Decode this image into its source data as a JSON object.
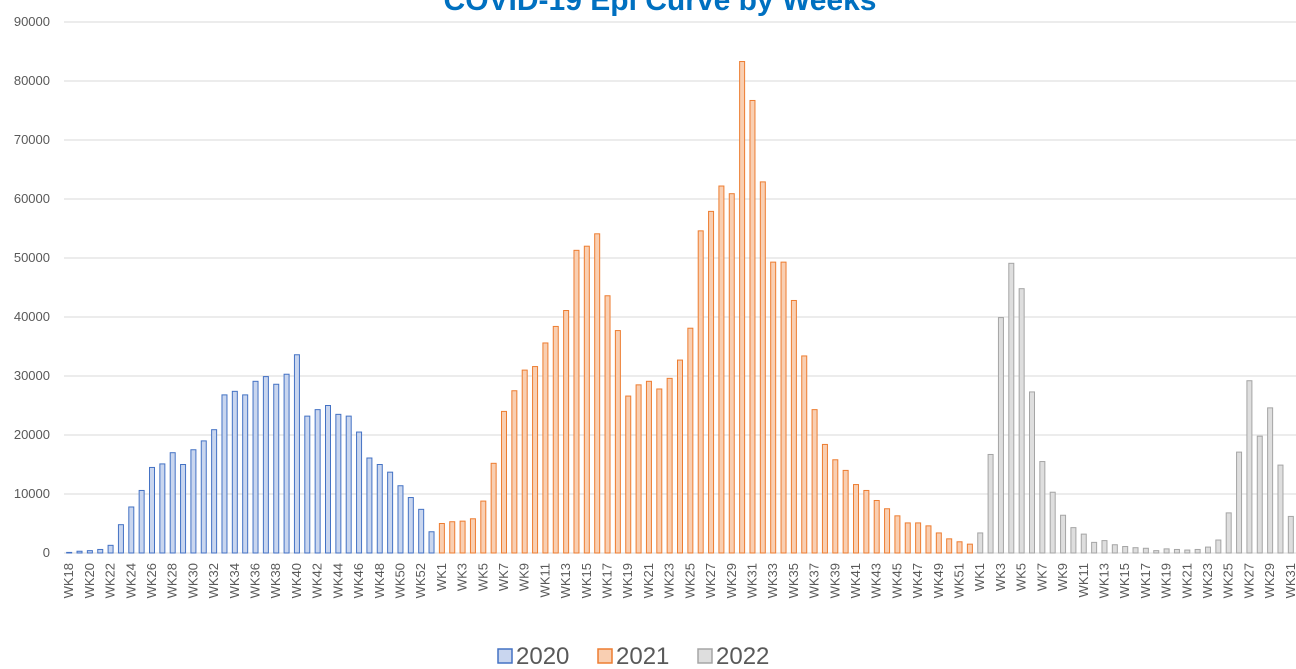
{
  "chart_data": {
    "type": "bar",
    "title": "COVID-19 Epi Curve by Weeks",
    "categories": [
      "WK18",
      null,
      "WK20",
      null,
      "WK22",
      null,
      "WK24",
      null,
      "WK26",
      null,
      "WK28",
      null,
      "WK30",
      null,
      "WK32",
      null,
      "WK34",
      null,
      "WK36",
      null,
      "WK38",
      null,
      "WK40",
      null,
      "WK42",
      null,
      "WK44",
      null,
      "WK46",
      null,
      "WK48",
      null,
      "WK50",
      null,
      "WK52",
      null,
      "WK1",
      null,
      "WK3",
      null,
      "WK5",
      null,
      "WK7",
      null,
      "WK9",
      null,
      "WK11",
      null,
      "WK13",
      null,
      "WK15",
      null,
      "WK17",
      null,
      "WK19",
      null,
      "WK21",
      null,
      "WK23",
      null,
      "WK25",
      null,
      "WK27",
      null,
      "WK29",
      null,
      "WK31",
      null,
      "WK33",
      null,
      "WK35",
      null,
      "WK37",
      null,
      "WK39",
      null,
      "WK41",
      null,
      "WK43",
      null,
      "WK45",
      null,
      "WK47",
      null,
      "WK49",
      null,
      "WK51",
      null,
      "WK1",
      null,
      "WK3",
      null,
      "WK5",
      null,
      "WK7",
      null,
      "WK9",
      null,
      "WK11",
      null,
      "WK13",
      null,
      "WK15",
      null,
      "WK17",
      null,
      "WK19",
      null,
      "WK21",
      null,
      "WK23",
      null,
      "WK25",
      null,
      "WK27",
      null,
      "WK29",
      null,
      "WK31"
    ],
    "series": [
      {
        "name": "2020",
        "color": "#4472c4",
        "fill": "#c9d6ef",
        "values": [
          100,
          300,
          400,
          600,
          1300,
          4800,
          7800,
          10600,
          14500,
          15100,
          17000,
          15000,
          17500,
          19000,
          20900,
          26800,
          27400,
          26800,
          29100,
          29900,
          28600,
          30300,
          33600,
          23200,
          24300,
          25000,
          23500,
          23200,
          20500,
          16100,
          15000,
          13700,
          11400,
          9400,
          7400,
          3600,
          null,
          null,
          null,
          null,
          null,
          null,
          null,
          null,
          null,
          null,
          null,
          null,
          null,
          null,
          null,
          null,
          null,
          null,
          null,
          null,
          null,
          null,
          null,
          null,
          null,
          null,
          null,
          null,
          null,
          null,
          null,
          null,
          null,
          null,
          null,
          null,
          null,
          null,
          null,
          null,
          null,
          null,
          null,
          null,
          null,
          null,
          null,
          null,
          null,
          null,
          null,
          null,
          null,
          null,
          null,
          null,
          null,
          null,
          null,
          null,
          null,
          null,
          null,
          null,
          null,
          null,
          null,
          null,
          null,
          null,
          null,
          null,
          null,
          null,
          null,
          null,
          null,
          null,
          null,
          null,
          null,
          null,
          null
        ]
      },
      {
        "name": "2021",
        "color": "#ed7d31",
        "fill": "#f9cfb2",
        "values": [
          null,
          null,
          null,
          null,
          null,
          null,
          null,
          null,
          null,
          null,
          null,
          null,
          null,
          null,
          null,
          null,
          null,
          null,
          null,
          null,
          null,
          null,
          null,
          null,
          null,
          null,
          null,
          null,
          null,
          null,
          null,
          null,
          null,
          null,
          null,
          null,
          5000,
          5300,
          5400,
          5800,
          8800,
          15200,
          24000,
          27500,
          31000,
          31600,
          35600,
          38400,
          41100,
          51300,
          52000,
          54100,
          43600,
          37700,
          26600,
          28500,
          29100,
          27800,
          29600,
          32700,
          38100,
          54600,
          57900,
          62200,
          60900,
          83300,
          76700,
          62900,
          49300,
          49300,
          42800,
          33400,
          24300,
          18400,
          15800,
          14000,
          11600,
          10600,
          8900,
          7500,
          6300,
          5100,
          5100,
          4600,
          3400,
          2400,
          1900,
          1500,
          null,
          null,
          null,
          null,
          null,
          null,
          null,
          null,
          null,
          null,
          null,
          null,
          null,
          null,
          null,
          null,
          null,
          null,
          null,
          null,
          null,
          null,
          null,
          null,
          null,
          null,
          null,
          null,
          null,
          null,
          null
        ]
      },
      {
        "name": "2022",
        "color": "#a5a5a5",
        "fill": "#dedede",
        "values": [
          null,
          null,
          null,
          null,
          null,
          null,
          null,
          null,
          null,
          null,
          null,
          null,
          null,
          null,
          null,
          null,
          null,
          null,
          null,
          null,
          null,
          null,
          null,
          null,
          null,
          null,
          null,
          null,
          null,
          null,
          null,
          null,
          null,
          null,
          null,
          null,
          null,
          null,
          null,
          null,
          null,
          null,
          null,
          null,
          null,
          null,
          null,
          null,
          null,
          null,
          null,
          null,
          null,
          null,
          null,
          null,
          null,
          null,
          null,
          null,
          null,
          null,
          null,
          null,
          null,
          null,
          null,
          null,
          null,
          null,
          null,
          null,
          null,
          null,
          null,
          null,
          null,
          null,
          null,
          null,
          null,
          null,
          null,
          null,
          null,
          null,
          null,
          null,
          3400,
          16700,
          39900,
          49100,
          44800,
          27300,
          15500,
          10300,
          6400,
          4300,
          3200,
          1800,
          2100,
          1400,
          1100,
          900,
          800,
          400,
          700,
          600,
          500,
          600,
          1000,
          2200,
          6800,
          17100,
          29200,
          19800,
          24600,
          14900,
          6200
        ]
      }
    ],
    "ylim": [
      0,
      90000
    ],
    "yticks": [
      0,
      10000,
      20000,
      30000,
      40000,
      50000,
      60000,
      70000,
      80000,
      90000
    ],
    "grid": true,
    "legend": "bottom"
  }
}
